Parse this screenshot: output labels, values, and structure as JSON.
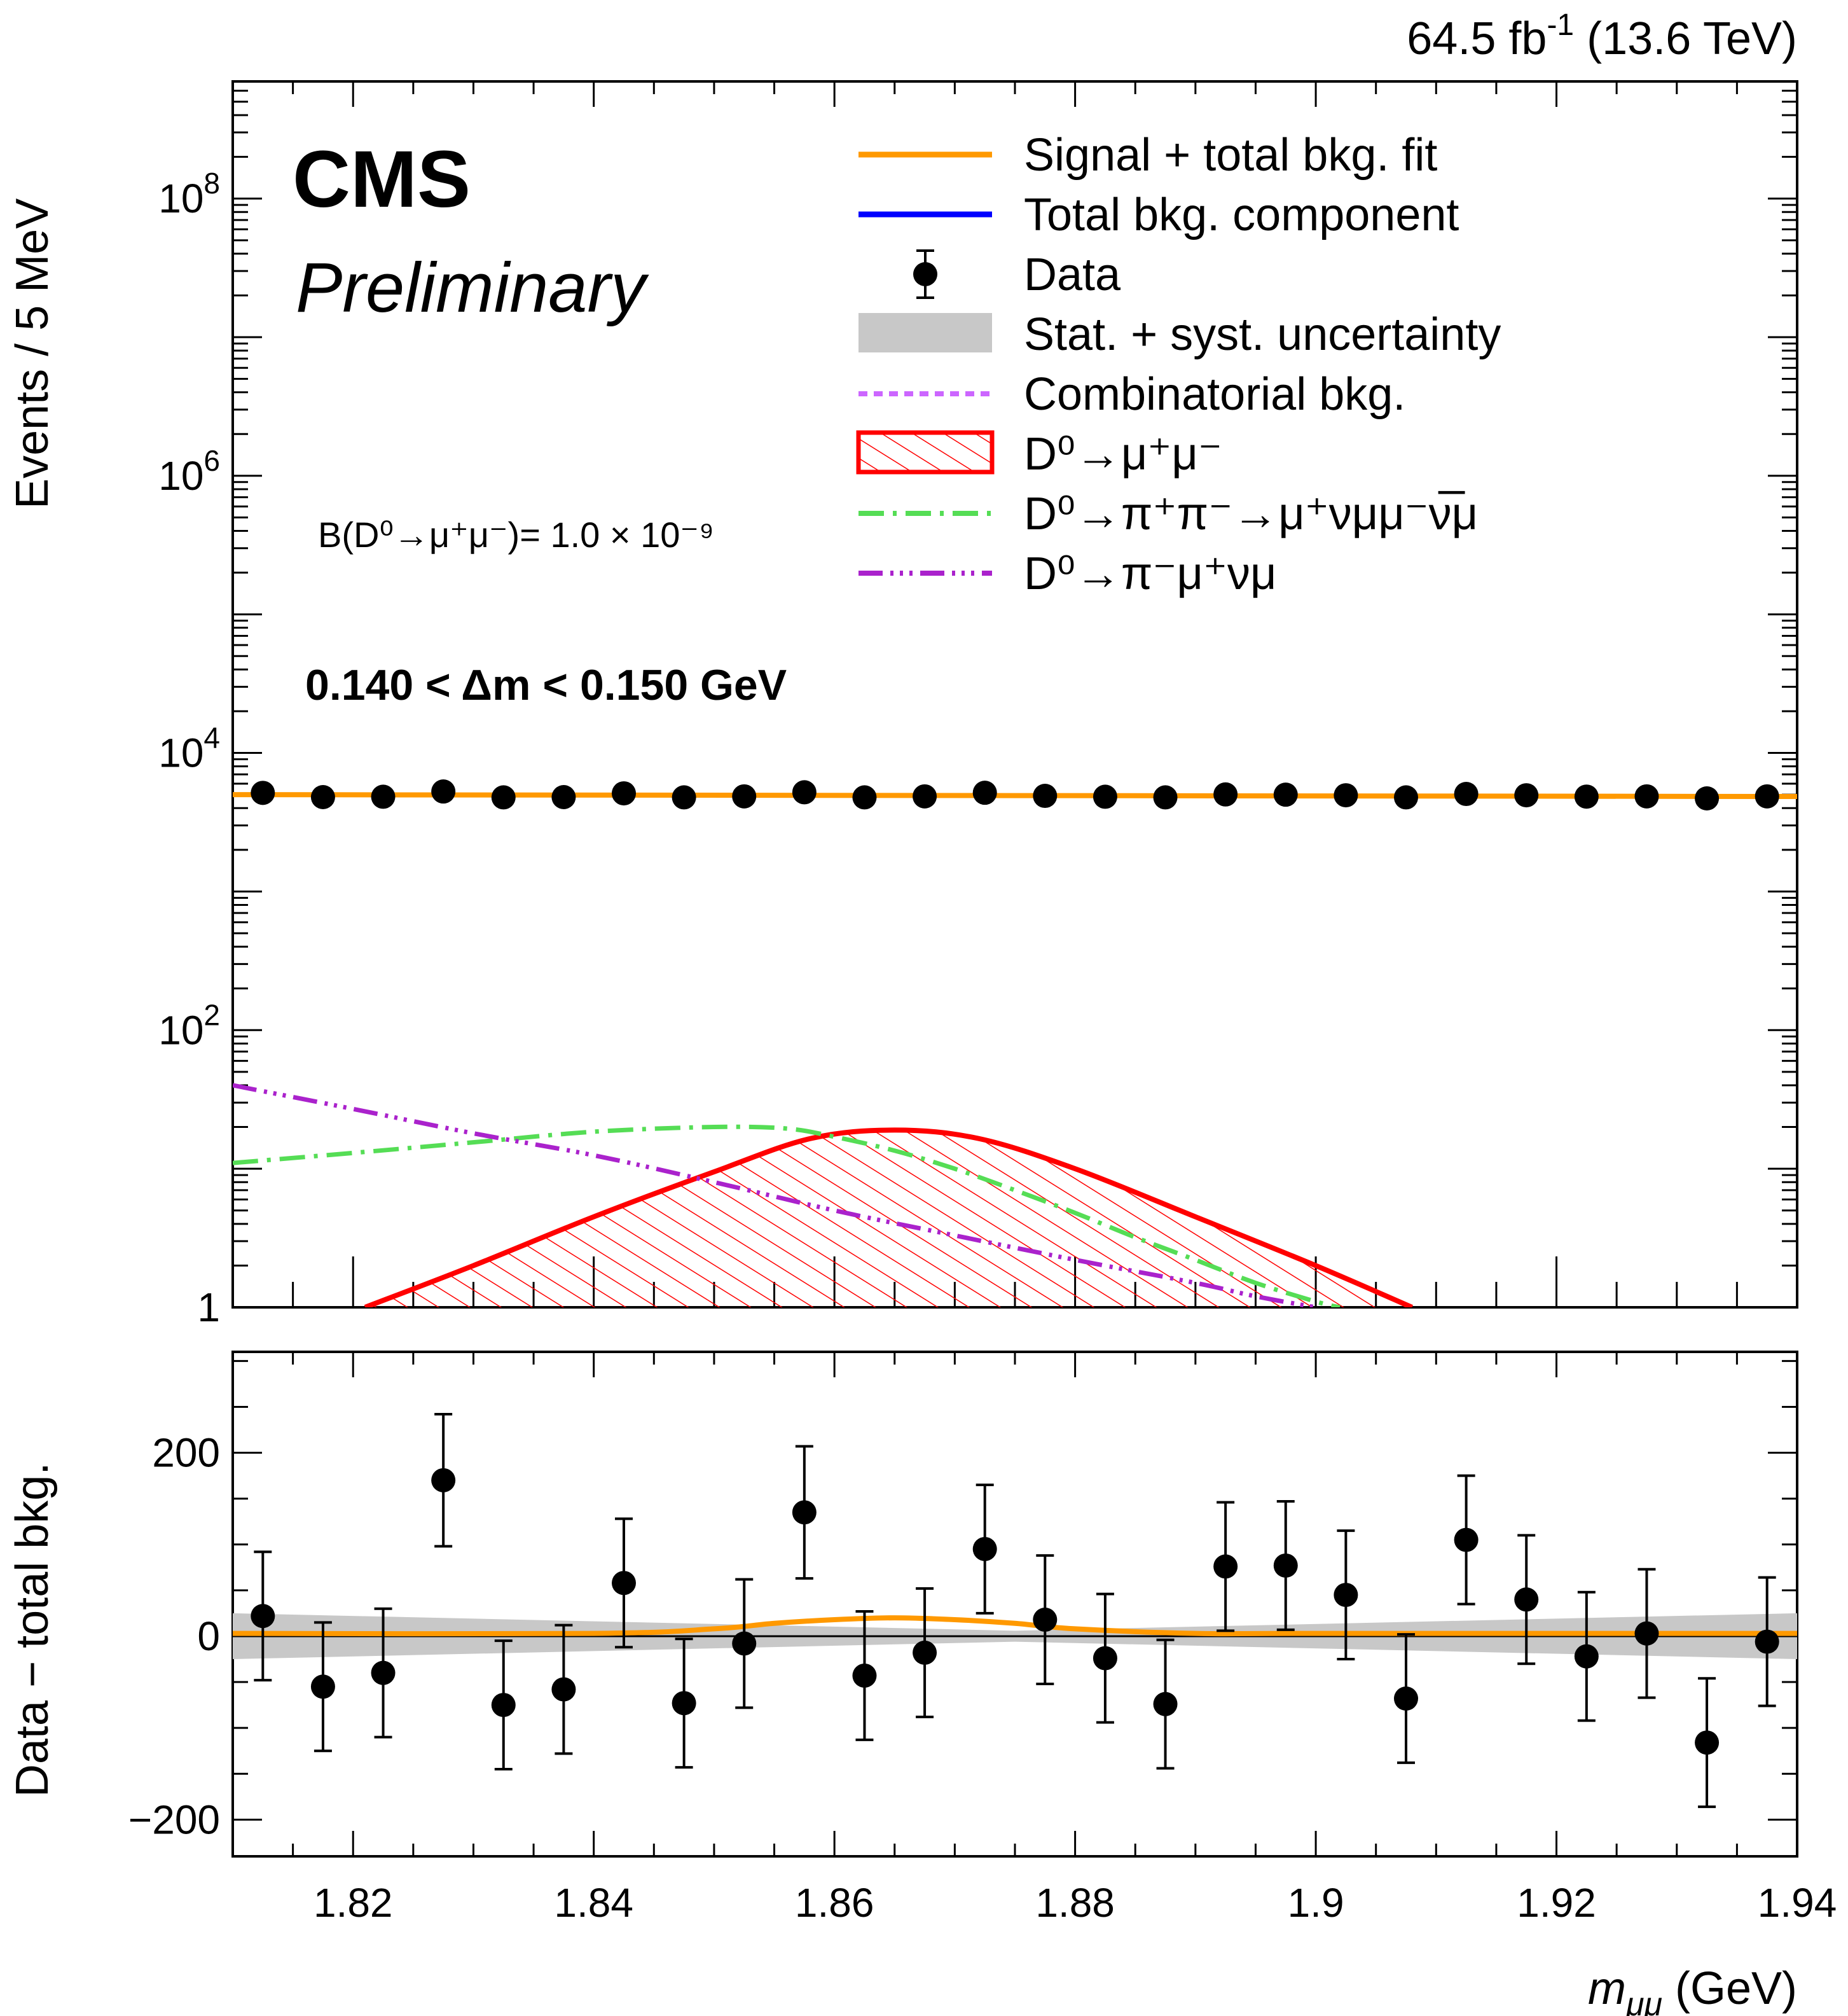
{
  "header": {
    "lumi": "64.5 fb",
    "lumi_exp": "-1",
    "energy": "(13.6 TeV)",
    "experiment": "CMS",
    "status": "Preliminary"
  },
  "annotations": {
    "branching": "B(D⁰→μ⁺μ⁻)= 1.0 × 10⁻⁹",
    "range": "0.140 <  Δm < 0.150 GeV"
  },
  "colors": {
    "signal_total": "#ff9900",
    "total_bkg": "#0000ff",
    "data": "#000000",
    "uncertainty": "#c8c8c8",
    "combinatorial": "#cc66ff",
    "signal": "#ff0000",
    "pipi": "#55dd55",
    "pimunu": "#aa22cc"
  },
  "legend": [
    {
      "key": "signal_total",
      "label": "Signal + total bkg. fit",
      "style": "line"
    },
    {
      "key": "total_bkg",
      "label": "Total bkg. component",
      "style": "line"
    },
    {
      "key": "data",
      "label": "Data",
      "style": "marker"
    },
    {
      "key": "uncertainty",
      "label": "Stat. + syst. uncertainty",
      "style": "band"
    },
    {
      "key": "combinatorial",
      "label": "Combinatorial bkg.",
      "style": "dotted"
    },
    {
      "key": "signal",
      "label": "D⁰→μ⁺μ⁻",
      "style": "hatched"
    },
    {
      "key": "pipi",
      "label": "D⁰→π⁺π⁻→μ⁺νμμ⁻ν̅μ",
      "style": "dashdot"
    },
    {
      "key": "pimunu",
      "label": "D⁰→π⁻μ⁺νμ",
      "style": "dashdotdot"
    }
  ],
  "chart_data": [
    {
      "type": "scatter",
      "panel": "main",
      "ylabel": "Events / 5 MeV",
      "log_y": true,
      "xlim": [
        1.81,
        1.94
      ],
      "ylim": [
        1,
        700000000
      ],
      "y_tick_labels": [
        {
          "value": 1,
          "label": "1"
        },
        {
          "value": 100,
          "label": "10",
          "exp": "2"
        },
        {
          "value": 10000,
          "label": "10",
          "exp": "4"
        },
        {
          "value": 1000000,
          "label": "10",
          "exp": "6"
        },
        {
          "value": 100000000,
          "label": "10",
          "exp": "8"
        }
      ],
      "series": [
        {
          "name": "Data",
          "key": "data",
          "x": [
            1.8125,
            1.8175,
            1.8225,
            1.8275,
            1.8325,
            1.8375,
            1.8425,
            1.8475,
            1.8525,
            1.8575,
            1.8625,
            1.8675,
            1.8725,
            1.8775,
            1.8825,
            1.8875,
            1.8925,
            1.8975,
            1.9025,
            1.9075,
            1.9125,
            1.9175,
            1.9225,
            1.9275,
            1.9325,
            1.9375
          ],
          "y": [
            5150,
            4800,
            4830,
            5270,
            4780,
            4800,
            5110,
            4780,
            4860,
            5200,
            4780,
            4860,
            5160,
            4900,
            4830,
            4780,
            5020,
            5000,
            4950,
            4780,
            5060,
            4950,
            4840,
            4860,
            4700,
            4860
          ]
        },
        {
          "name": "Signal + total bkg. fit",
          "key": "signal_total",
          "x": [
            1.81,
            1.94
          ],
          "y": [
            5000,
            4850
          ]
        },
        {
          "name": "D⁰→μ⁺μ⁻",
          "key": "signal",
          "x": [
            1.821,
            1.83,
            1.84,
            1.85,
            1.858,
            1.865,
            1.872,
            1.88,
            1.89,
            1.9,
            1.908
          ],
          "y": [
            1.0,
            2.0,
            4.5,
            9.5,
            16.5,
            19.0,
            16.5,
            10.0,
            4.5,
            2.0,
            1.0
          ]
        },
        {
          "name": "D⁰→π⁺π⁻→μ⁺νμμ⁻ν̅μ",
          "key": "pipi",
          "x": [
            1.81,
            1.82,
            1.83,
            1.84,
            1.85,
            1.856,
            1.86,
            1.865,
            1.87,
            1.875,
            1.88,
            1.885,
            1.89,
            1.895,
            1.9,
            1.902
          ],
          "y": [
            11.0,
            13.0,
            15.5,
            18.5,
            20.0,
            19.5,
            17.0,
            13.5,
            10.0,
            7.0,
            4.8,
            3.2,
            2.2,
            1.5,
            1.1,
            1.0
          ]
        },
        {
          "name": "D⁰→π⁻μ⁺νμ",
          "key": "pimunu",
          "x": [
            1.81,
            1.82,
            1.83,
            1.84,
            1.85,
            1.86,
            1.87,
            1.88,
            1.89,
            1.895,
            1.9
          ],
          "y": [
            40,
            27,
            18,
            12.5,
            8.0,
            5.0,
            3.3,
            2.2,
            1.5,
            1.2,
            1.0
          ]
        }
      ]
    },
    {
      "type": "scatter",
      "panel": "ratio",
      "xlabel": "m",
      "xlabel_sub": "μμ",
      "xlabel_unit": " (GeV)",
      "ylabel": "Data − total bkg.",
      "xlim": [
        1.81,
        1.94
      ],
      "ylim": [
        -240,
        310
      ],
      "x_tick_labels": [
        "1.82",
        "1.84",
        "1.86",
        "1.88",
        "1.9",
        "1.92",
        "1.94"
      ],
      "x_ticks": [
        1.82,
        1.84,
        1.86,
        1.88,
        1.9,
        1.92,
        1.94
      ],
      "y_tick_labels": [
        {
          "value": -200,
          "label": "−200"
        },
        {
          "value": 0,
          "label": "0"
        },
        {
          "value": 200,
          "label": "200"
        }
      ],
      "series": [
        {
          "name": "Data",
          "key": "data",
          "x": [
            1.8125,
            1.8175,
            1.8225,
            1.8275,
            1.8325,
            1.8375,
            1.8425,
            1.8475,
            1.8525,
            1.8575,
            1.8625,
            1.8675,
            1.8725,
            1.8775,
            1.8825,
            1.8875,
            1.8925,
            1.8975,
            1.9025,
            1.9075,
            1.9125,
            1.9175,
            1.9225,
            1.9275,
            1.9325,
            1.9375
          ],
          "y": [
            22,
            -55,
            -40,
            170,
            -75,
            -58,
            58,
            -73,
            -8,
            135,
            -43,
            -18,
            95,
            18,
            -24,
            -74,
            76,
            77,
            45,
            -68,
            105,
            40,
            -22,
            3,
            -116,
            -6
          ],
          "err": [
            70,
            70,
            70,
            72,
            70,
            70,
            70,
            70,
            70,
            72,
            70,
            70,
            70,
            70,
            70,
            70,
            70,
            70,
            70,
            70,
            70,
            70,
            70,
            70,
            70,
            70
          ]
        },
        {
          "name": "Signal + total bkg. fit",
          "key": "signal_total",
          "x": [
            1.81,
            1.84,
            1.85,
            1.855,
            1.86,
            1.865,
            1.87,
            1.875,
            1.88,
            1.89,
            1.9,
            1.94
          ],
          "y": [
            3,
            3,
            8,
            14,
            18,
            20,
            18,
            14,
            8,
            3,
            3,
            3
          ]
        },
        {
          "name": "Stat. + syst. uncertainty",
          "key": "uncertainty",
          "x": [
            1.81,
            1.875,
            1.94
          ],
          "upper": [
            25,
            6,
            25
          ],
          "lower": [
            -25,
            -6,
            -25
          ]
        }
      ]
    }
  ]
}
